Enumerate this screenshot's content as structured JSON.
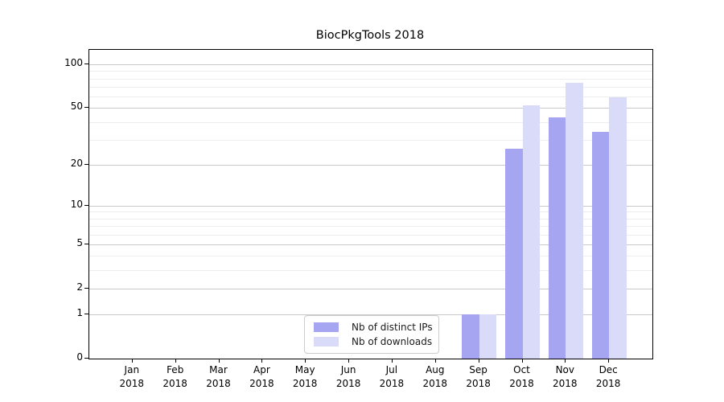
{
  "chart_data": {
    "type": "bar",
    "title": "BiocPkgTools 2018",
    "categories": [
      "Jan",
      "Feb",
      "Mar",
      "Apr",
      "May",
      "Jun",
      "Jul",
      "Aug",
      "Sep",
      "Oct",
      "Nov",
      "Dec"
    ],
    "year_label": "2018",
    "series": [
      {
        "name": "Nb of distinct IPs",
        "color": "#a5a5f1",
        "values": [
          0,
          0,
          0,
          0,
          0,
          0,
          0,
          0,
          1,
          26,
          43,
          34
        ]
      },
      {
        "name": "Nb of downloads",
        "color": "#dadaf9",
        "values": [
          0,
          0,
          0,
          0,
          0,
          0,
          0,
          0,
          1,
          52,
          75,
          59
        ]
      }
    ],
    "xlabel": "",
    "ylabel": "",
    "y_scale": "log10(1+x)",
    "ylim": [
      0,
      127
    ],
    "y_major_ticks": [
      0,
      1,
      2,
      5,
      10,
      20,
      50,
      100
    ],
    "y_minor_gridlines": [
      3,
      4,
      6,
      7,
      8,
      9,
      30,
      40,
      60,
      70,
      80,
      90
    ],
    "grid": "horizontal",
    "legend_position": "lower center",
    "colors": {
      "axis": "#000000",
      "grid_major": "#c9c9c9",
      "grid_minor": "#ededed",
      "legend_border": "#cccccc"
    }
  }
}
